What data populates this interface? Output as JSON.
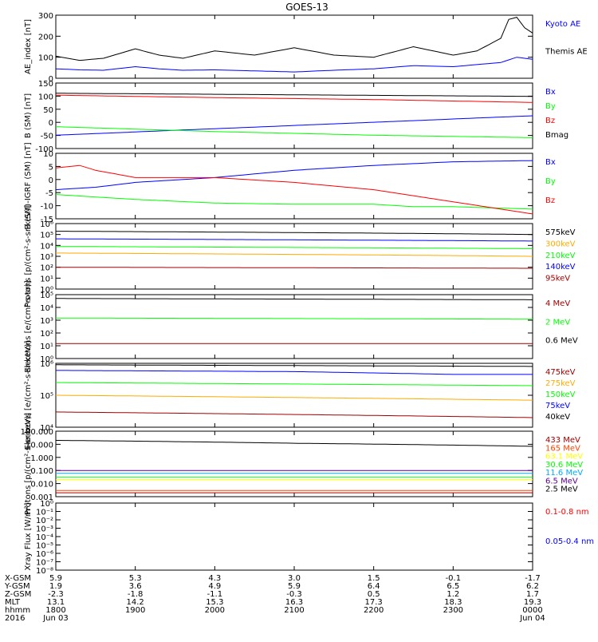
{
  "title": "GOES-13",
  "colors": {
    "black": "#000000",
    "blue": "#0000ff",
    "green": "#00ff00",
    "red": "#ff0000",
    "orange": "#ffaa00",
    "darkred": "#a00000",
    "cyan": "#00aaff",
    "purple": "#550088",
    "yellow": "#ffff00"
  },
  "x_axis": {
    "ticks": [
      "1800",
      "1900",
      "2000",
      "2100",
      "2200",
      "2300",
      "0000"
    ],
    "range": [
      "1800",
      "0000"
    ],
    "rows": [
      {
        "label": "X-GSM",
        "values": [
          "5.9",
          "5.3",
          "4.3",
          "3.0",
          "1.5",
          "-0.1",
          "-1.7"
        ]
      },
      {
        "label": "Y-GSM",
        "values": [
          "1.9",
          "3.6",
          "4.9",
          "5.9",
          "6.4",
          "6.5",
          "6.2"
        ]
      },
      {
        "label": "Z-GSM",
        "values": [
          "-2.3",
          "-1.8",
          "-1.1",
          "-0.3",
          "0.5",
          "1.2",
          "1.7"
        ]
      },
      {
        "label": "MLT",
        "values": [
          "13.1",
          "14.2",
          "15.3",
          "16.3",
          "17.3",
          "18.3",
          "19.3"
        ]
      },
      {
        "label": "hhmm",
        "values": [
          "1800",
          "1900",
          "2000",
          "2100",
          "2200",
          "2300",
          "0000"
        ]
      },
      {
        "label": "2016",
        "values": [
          "Jun 03",
          "",
          "",
          "",
          "",
          "",
          "Jun 04"
        ]
      }
    ]
  },
  "chart_data": [
    {
      "type": "line",
      "ylabel": "AE_index [nT]",
      "ylim": [
        0,
        300
      ],
      "y_ticks": [
        "0",
        "100",
        "200",
        "300"
      ],
      "series": [
        {
          "name": "Kyoto AE",
          "color": "#0000ff",
          "x": [
            0,
            0.3,
            0.6,
            1,
            1.3,
            1.6,
            2,
            2.5,
            3,
            3.5,
            4,
            4.5,
            5,
            5.3,
            5.6,
            5.8,
            6
          ],
          "y": [
            45,
            40,
            38,
            55,
            45,
            38,
            40,
            35,
            30,
            38,
            45,
            60,
            55,
            65,
            75,
            100,
            90
          ]
        },
        {
          "name": "Themis AE",
          "color": "#000000",
          "x": [
            0,
            0.3,
            0.6,
            1,
            1.3,
            1.6,
            2,
            2.5,
            3,
            3.5,
            4,
            4.5,
            5,
            5.3,
            5.6,
            5.7,
            5.8,
            5.9,
            6
          ],
          "y": [
            105,
            85,
            95,
            140,
            110,
            95,
            130,
            110,
            145,
            110,
            100,
            150,
            110,
            130,
            190,
            280,
            290,
            240,
            215
          ]
        }
      ]
    },
    {
      "type": "line",
      "ylabel": "B (SM) [nT]",
      "ylim": [
        -110,
        160
      ],
      "y_ticks": [
        "-100",
        "-50",
        "0",
        "50",
        "100",
        "150"
      ],
      "series": [
        {
          "name": "Bx",
          "color": "#0000ff",
          "x": [
            0,
            6
          ],
          "y": [
            -55,
            25
          ]
        },
        {
          "name": "By",
          "color": "#00ff00",
          "x": [
            0,
            2,
            4,
            6
          ],
          "y": [
            -20,
            -40,
            -55,
            -65
          ]
        },
        {
          "name": "Bz",
          "color": "#ff0000",
          "x": [
            0,
            2,
            4,
            6
          ],
          "y": [
            110,
            100,
            92,
            80
          ]
        },
        {
          "name": "Bmag",
          "color": "#000000",
          "x": [
            0,
            6
          ],
          "y": [
            118,
            105
          ]
        }
      ]
    },
    {
      "type": "line",
      "ylabel": "B (SM)-IGRF (SM) [nT]",
      "ylim": [
        -15,
        12
      ],
      "y_ticks": [
        "-15",
        "-10",
        "-5",
        "0",
        "5",
        "10"
      ],
      "series": [
        {
          "name": "Bx",
          "color": "#0000ff",
          "x": [
            0,
            0.5,
            1,
            2,
            3,
            4,
            5,
            6
          ],
          "y": [
            -3,
            -2,
            0,
            2,
            5,
            7,
            8.5,
            9
          ]
        },
        {
          "name": "By",
          "color": "#00ff00",
          "x": [
            0,
            1,
            2,
            3,
            4,
            4.5,
            5,
            6
          ],
          "y": [
            -5,
            -7,
            -8.5,
            -9,
            -9,
            -10,
            -10,
            -11
          ]
        },
        {
          "name": "Bz",
          "color": "#ff0000",
          "x": [
            0,
            0.3,
            0.5,
            1,
            2,
            3,
            4,
            5,
            6
          ],
          "y": [
            6,
            7,
            5,
            2,
            2,
            0,
            -3,
            -8,
            -13
          ]
        }
      ]
    },
    {
      "type": "line",
      "ylabel": "Protons [p/(cm²-s-sr-keV)]",
      "yscale": "log",
      "ylim": [
        1,
        1000000
      ],
      "y_ticks": [
        "10⁰",
        "10¹",
        "10²",
        "10³",
        "10⁴",
        "10⁵",
        "10⁶"
      ],
      "series": [
        {
          "name": "575keV",
          "color": "#000000",
          "x": [
            0,
            6
          ],
          "y": [
            200000,
            100000
          ]
        },
        {
          "name": "300keV",
          "color": "#ffaa00",
          "x": [
            0,
            6
          ],
          "y": [
            2000,
            1000
          ]
        },
        {
          "name": "210keV",
          "color": "#00ff00",
          "x": [
            0,
            6
          ],
          "y": [
            8000,
            5000
          ]
        },
        {
          "name": "140keV",
          "color": "#0000ff",
          "x": [
            0,
            6
          ],
          "y": [
            40000,
            25000
          ]
        },
        {
          "name": "95keV",
          "color": "#a00000",
          "x": [
            0,
            6
          ],
          "y": [
            100,
            80
          ]
        }
      ]
    },
    {
      "type": "line",
      "ylabel": "Electrons [e/(cm²-s-sr)]",
      "yscale": "log",
      "ylim": [
        1,
        100000
      ],
      "y_ticks": [
        "10⁰",
        "10¹",
        "10²",
        "10³",
        "10⁴",
        "10⁵"
      ],
      "series": [
        {
          "name": "4 MeV",
          "color": "#a00000",
          "x": [
            0,
            6
          ],
          "y": [
            15,
            15
          ]
        },
        {
          "name": "2 MeV",
          "color": "#00ff00",
          "x": [
            0,
            6
          ],
          "y": [
            1500,
            1200
          ]
        },
        {
          "name": "0.6 MeV",
          "color": "#000000",
          "x": [
            0,
            6
          ],
          "y": [
            50000,
            40000
          ]
        }
      ]
    },
    {
      "type": "line",
      "ylabel": "Electrons [e/(cm²-s-sr-keV)]",
      "yscale": "log",
      "ylim": [
        10000,
        1000000
      ],
      "y_ticks": [
        "10⁴",
        "10⁵",
        "10⁶"
      ],
      "series": [
        {
          "name": "475keV",
          "color": "#a00000",
          "x": [
            0,
            6
          ],
          "y": [
            30000,
            20000
          ]
        },
        {
          "name": "275keV",
          "color": "#ffaa00",
          "x": [
            0,
            6
          ],
          "y": [
            100000,
            70000
          ]
        },
        {
          "name": "150keV",
          "color": "#00ff00",
          "x": [
            0,
            6
          ],
          "y": [
            250000,
            200000
          ]
        },
        {
          "name": "75keV",
          "color": "#0000ff",
          "x": [
            0,
            3,
            5,
            6
          ],
          "y": [
            600000,
            550000,
            450000,
            450000
          ]
        },
        {
          "name": "40keV",
          "color": "#000000",
          "x": [
            0,
            6
          ],
          "y": [
            900000,
            800000
          ]
        }
      ]
    },
    {
      "type": "line",
      "ylabel": "Protons [p/(cm²-s-sr-keV)]",
      "yscale": "log",
      "ylim": [
        0.001,
        100
      ],
      "y_ticks": [
        "0.001",
        "0.010",
        "0.100",
        "1.000",
        "10.000",
        "100.000"
      ],
      "series": [
        {
          "name": "433 MeV",
          "color": "#a00000",
          "x": [
            0,
            6
          ],
          "y": [
            0.002,
            0.002
          ]
        },
        {
          "name": "165 MeV",
          "color": "#ff4400",
          "x": [
            0,
            6
          ],
          "y": [
            0.003,
            0.003
          ]
        },
        {
          "name": "63.1 MeV",
          "color": "#ffff00",
          "x": [
            0,
            6
          ],
          "y": [
            0.02,
            0.02
          ]
        },
        {
          "name": "30.6 MeV",
          "color": "#00ff00",
          "x": [
            0,
            6
          ],
          "y": [
            0.03,
            0.03
          ]
        },
        {
          "name": "11.6 MeV",
          "color": "#00aaff",
          "x": [
            0,
            6
          ],
          "y": [
            0.06,
            0.06
          ]
        },
        {
          "name": "6.5 MeV",
          "color": "#550088",
          "x": [
            0,
            6
          ],
          "y": [
            0.1,
            0.1
          ]
        },
        {
          "name": "2.5 MeV",
          "color": "#000000",
          "x": [
            0,
            3,
            6
          ],
          "y": [
            20,
            12,
            7
          ]
        }
      ]
    },
    {
      "type": "line",
      "ylabel": "Xray Flux [W/m²]",
      "yscale": "log",
      "ylim": [
        1e-08,
        1
      ],
      "y_ticks": [
        "10⁻⁸",
        "10⁻⁷",
        "10⁻⁶",
        "10⁻⁵",
        "10⁻⁴",
        "10⁻³",
        "10⁻²",
        "10⁻¹",
        "10⁰"
      ],
      "series": [
        {
          "name": "0.1-0.8 nm",
          "color": "#ff0000",
          "x": [],
          "y": []
        },
        {
          "name": "0.05-0.4 nm",
          "color": "#0000ff",
          "x": [],
          "y": []
        }
      ]
    }
  ]
}
